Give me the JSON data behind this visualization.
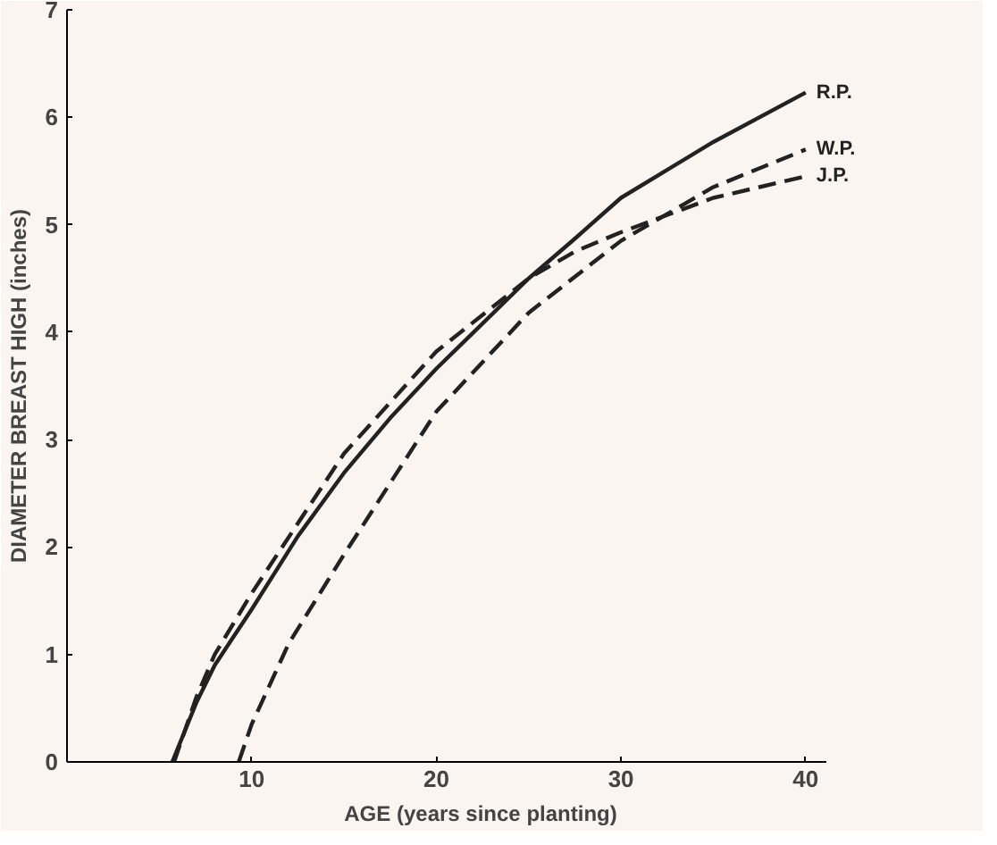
{
  "chart_data": {
    "type": "line",
    "xlabel": "AGE (years since planting)",
    "ylabel": "DIAMETER BREAST HIGH (inches)",
    "xlim": [
      0,
      41.1
    ],
    "ylim": [
      0,
      7
    ],
    "xticks": [
      10,
      20,
      30,
      40
    ],
    "yticks": [
      0,
      1,
      2,
      3,
      4,
      5,
      6,
      7
    ],
    "grid": false,
    "marker": "none",
    "series": [
      {
        "name": "R.P.",
        "color": "#222222",
        "line_style": "solid",
        "x": [
          5.7,
          7,
          8,
          10,
          12.5,
          15,
          17.5,
          20,
          25,
          27.5,
          30,
          35,
          40
        ],
        "values": [
          0,
          0.55,
          0.9,
          1.42,
          2.1,
          2.69,
          3.2,
          3.66,
          4.5,
          4.87,
          5.25,
          5.77,
          6.23
        ]
      },
      {
        "name": "W.P.",
        "color": "#222222",
        "line_style": "dashed",
        "x": [
          9.3,
          10,
          12,
          15,
          20,
          25,
          30,
          35,
          40
        ],
        "values": [
          0,
          0.35,
          1.1,
          1.93,
          3.26,
          4.18,
          4.85,
          5.35,
          5.7
        ]
      },
      {
        "name": "J.P.",
        "color": "#222222",
        "line_style": "dashed",
        "x": [
          5.8,
          7,
          8,
          10,
          15,
          20,
          25,
          27.5,
          30,
          35,
          40
        ],
        "values": [
          0,
          0.6,
          1.0,
          1.57,
          2.87,
          3.82,
          4.5,
          4.75,
          4.93,
          5.25,
          5.45
        ]
      }
    ]
  }
}
